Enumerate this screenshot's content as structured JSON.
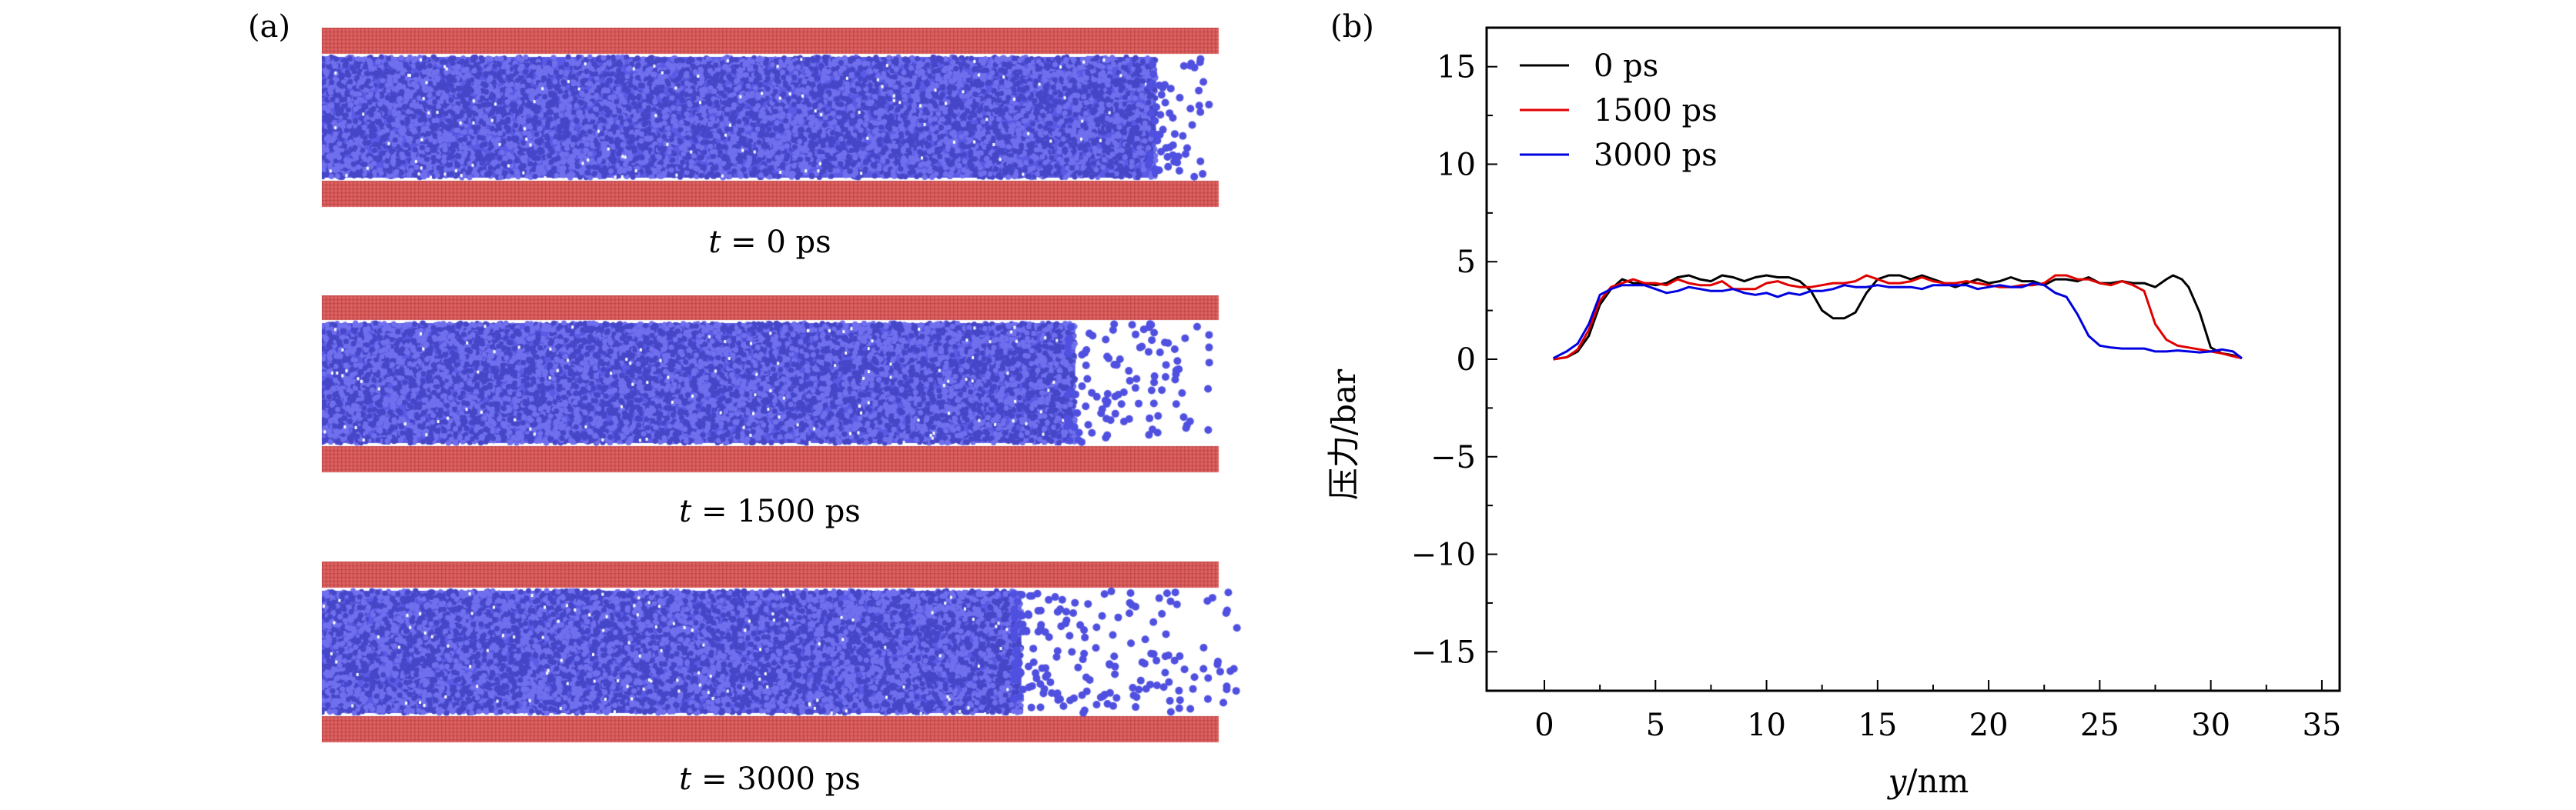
{
  "panel_a": {
    "label": "(a)",
    "snapshots": [
      {
        "var": "t",
        "eq": " = 0 ps",
        "liquid_front_fraction": 0.93
      },
      {
        "var": "t",
        "eq": " = 1500 ps",
        "liquid_front_fraction": 0.84
      },
      {
        "var": "t",
        "eq": " = 3000 ps",
        "liquid_front_fraction": 0.78
      }
    ],
    "colors": {
      "wall": "#e06262",
      "liquid": "#5a5ae6"
    }
  },
  "panel_b": {
    "label": "(b)"
  },
  "chart_data": {
    "type": "line",
    "xlabel_var": "y",
    "xlabel_unit": "/nm",
    "ylabel": "压力/bar",
    "xlim": [
      -2.6,
      35.8
    ],
    "ylim": [
      -17,
      17
    ],
    "xticks": [
      0,
      5,
      10,
      15,
      20,
      25,
      30,
      35
    ],
    "yticks": [
      -15,
      -10,
      -5,
      0,
      5,
      10,
      15
    ],
    "xtick_labels": [
      "0",
      "5",
      "10",
      "15",
      "20",
      "25",
      "30",
      "35"
    ],
    "ytick_labels": [
      "−15",
      "−10",
      "−5",
      "0",
      "5",
      "10",
      "15"
    ],
    "grid": false,
    "legend_position": "top-left",
    "series": [
      {
        "name": "0 ps",
        "color": "#000000",
        "x": [
          0.4,
          1,
          1.5,
          2,
          2.5,
          3,
          3.5,
          4,
          4.5,
          5,
          5.5,
          6,
          6.5,
          7,
          7.5,
          8,
          8.5,
          9,
          9.5,
          10,
          10.5,
          11,
          11.5,
          12,
          12.5,
          13,
          13.5,
          14,
          14.5,
          15,
          15.5,
          16,
          16.5,
          17,
          17.5,
          18,
          18.5,
          19,
          19.5,
          20,
          20.5,
          21,
          21.5,
          22,
          22.5,
          23,
          23.5,
          24,
          24.5,
          25,
          25.5,
          26,
          26.5,
          27,
          27.5,
          28,
          28.3,
          28.7,
          29,
          29.5,
          30,
          30.5,
          31,
          31.4
        ],
        "y": [
          0,
          0.1,
          0.4,
          1.2,
          2.8,
          3.6,
          4.1,
          3.9,
          3.9,
          3.8,
          3.9,
          4.2,
          4.3,
          4.1,
          4.0,
          4.3,
          4.2,
          4.0,
          4.2,
          4.3,
          4.2,
          4.2,
          4.0,
          3.5,
          2.5,
          2.1,
          2.1,
          2.4,
          3.4,
          4.1,
          4.3,
          4.3,
          4.1,
          4.3,
          4.1,
          3.9,
          3.7,
          3.9,
          4.1,
          3.9,
          4.0,
          4.2,
          4.0,
          4.0,
          3.8,
          4.1,
          4.1,
          4.0,
          4.2,
          3.9,
          3.9,
          4.0,
          3.9,
          3.9,
          3.7,
          4.1,
          4.3,
          4.1,
          3.7,
          2.4,
          0.6,
          0.3,
          0.2,
          0.05
        ]
      },
      {
        "name": "1500 ps",
        "color": "#e00000",
        "x": [
          0.4,
          1,
          1.5,
          2,
          2.5,
          3,
          3.5,
          4,
          4.5,
          5,
          5.5,
          6,
          6.5,
          7,
          7.5,
          8,
          8.5,
          9,
          9.5,
          10,
          10.5,
          11,
          11.5,
          12,
          12.5,
          13,
          13.5,
          14,
          14.5,
          15,
          15.5,
          16,
          16.5,
          17,
          17.5,
          18,
          18.5,
          19,
          19.5,
          20,
          20.5,
          21,
          21.5,
          22,
          22.5,
          23,
          23.5,
          24,
          24.5,
          25,
          25.5,
          26,
          26.5,
          27,
          27.5,
          28,
          28.5,
          29,
          29.5,
          30,
          30.5,
          31,
          31.4
        ],
        "y": [
          0,
          0.1,
          0.5,
          1.5,
          3.0,
          3.7,
          3.9,
          4.1,
          3.9,
          3.9,
          3.8,
          4.1,
          3.9,
          3.8,
          3.8,
          4.0,
          3.6,
          3.6,
          3.6,
          3.9,
          4.0,
          3.8,
          3.7,
          3.7,
          3.8,
          3.9,
          3.9,
          4.0,
          4.3,
          4.1,
          3.9,
          3.9,
          4.0,
          4.2,
          4.0,
          3.9,
          3.9,
          4.0,
          3.9,
          3.8,
          3.7,
          3.7,
          3.8,
          3.8,
          3.9,
          4.3,
          4.3,
          4.1,
          4.1,
          3.9,
          3.8,
          4.0,
          3.8,
          3.5,
          1.8,
          1.0,
          0.7,
          0.6,
          0.5,
          0.4,
          0.3,
          0.15,
          0.05
        ]
      },
      {
        "name": "3000 ps",
        "color": "#0000e0",
        "x": [
          0.4,
          1,
          1.5,
          2,
          2.5,
          3,
          3.5,
          4,
          4.5,
          5,
          5.5,
          6,
          6.5,
          7,
          7.5,
          8,
          8.5,
          9,
          9.5,
          10,
          10.5,
          11,
          11.5,
          12,
          12.5,
          13,
          13.5,
          14,
          14.5,
          15,
          15.5,
          16,
          16.5,
          17,
          17.5,
          18,
          18.5,
          19,
          19.5,
          20,
          20.5,
          21,
          21.5,
          22,
          22.5,
          23,
          23.5,
          24,
          24.5,
          25,
          25.5,
          26,
          27,
          27.5,
          28,
          28.5,
          29,
          29.5,
          30,
          30.5,
          31,
          31.4
        ],
        "y": [
          0.05,
          0.4,
          0.8,
          1.8,
          3.3,
          3.6,
          3.8,
          3.8,
          3.8,
          3.6,
          3.4,
          3.5,
          3.7,
          3.6,
          3.5,
          3.5,
          3.6,
          3.4,
          3.3,
          3.4,
          3.2,
          3.4,
          3.3,
          3.5,
          3.5,
          3.6,
          3.8,
          3.7,
          3.7,
          3.8,
          3.7,
          3.7,
          3.7,
          3.6,
          3.8,
          3.8,
          3.8,
          3.8,
          3.6,
          3.7,
          3.8,
          3.7,
          3.7,
          3.9,
          3.8,
          3.4,
          3.2,
          2.3,
          1.2,
          0.7,
          0.6,
          0.55,
          0.55,
          0.4,
          0.4,
          0.45,
          0.4,
          0.35,
          0.4,
          0.5,
          0.4,
          0.05
        ]
      }
    ]
  }
}
